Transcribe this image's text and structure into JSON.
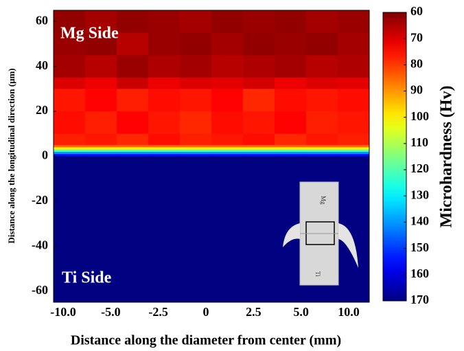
{
  "chart_data": {
    "type": "heatmap",
    "xlabel": "Distance along the diameter from center (mm)",
    "ylabel": "Distance along the longitudinal direction (μm)",
    "colorbar_label": "Microhardness  (Hv)",
    "annotations": [
      "Mg Side",
      "Ti Side"
    ],
    "inset_labels": [
      "Mg",
      "Ti"
    ],
    "categories": [
      "-10.0",
      "-5.0",
      "-2.5",
      "0",
      "2.5",
      "5.0",
      "10.0"
    ],
    "ylim": [
      -65,
      65
    ],
    "yticks": [
      60,
      40,
      20,
      0,
      -20,
      -40,
      -60
    ],
    "y_edges": [
      65,
      55,
      45,
      35,
      30,
      20,
      10,
      5,
      4,
      3,
      2,
      1,
      0,
      -65
    ],
    "z": [
      [
        62,
        64,
        62,
        63,
        64,
        62,
        63,
        62,
        64,
        63
      ],
      [
        63,
        62,
        66,
        63,
        62,
        64,
        62,
        63,
        62,
        64
      ],
      [
        64,
        66,
        63,
        65,
        64,
        66,
        65,
        64,
        66,
        65
      ],
      [
        70,
        72,
        68,
        72,
        70,
        71,
        69,
        72,
        70,
        71
      ],
      [
        76,
        74,
        77,
        75,
        76,
        74,
        78,
        75,
        76,
        75
      ],
      [
        75,
        77,
        74,
        76,
        78,
        75,
        76,
        74,
        77,
        76
      ],
      [
        77,
        76,
        78,
        75,
        77,
        76,
        75,
        78,
        76,
        77
      ],
      [
        85,
        85,
        85,
        85,
        85,
        85,
        85,
        85,
        85,
        85
      ],
      [
        100,
        100,
        100,
        100,
        100,
        100,
        100,
        100,
        100,
        100
      ],
      [
        120,
        120,
        120,
        120,
        120,
        120,
        120,
        120,
        120,
        120
      ],
      [
        140,
        140,
        140,
        140,
        140,
        140,
        140,
        140,
        140,
        140
      ],
      [
        155,
        155,
        155,
        155,
        155,
        155,
        155,
        155,
        155,
        155
      ],
      [
        170,
        170,
        170,
        170,
        170,
        170,
        170,
        170,
        170,
        170
      ]
    ],
    "clim": [
      60,
      170
    ],
    "cticks": [
      60,
      70,
      80,
      90,
      100,
      110,
      120,
      130,
      140,
      150,
      160,
      170
    ],
    "colormap": "jet"
  }
}
